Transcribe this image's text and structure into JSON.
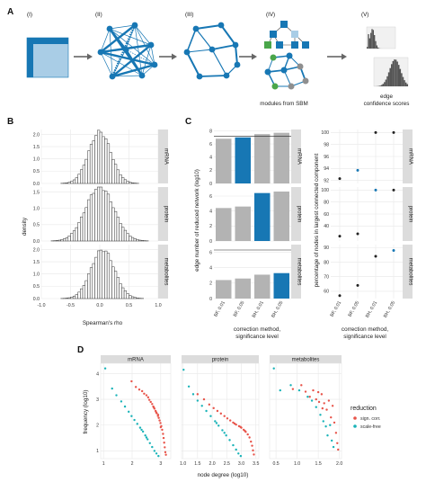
{
  "panels": {
    "A": {
      "letter": "A",
      "steps": [
        "(I)",
        "(II)",
        "(III)",
        "(IV)",
        "(V)"
      ],
      "caption_iv": "modules from SBM",
      "caption_v": [
        "edge",
        "confidence scores"
      ],
      "colors": {
        "blue": "#1777b4",
        "grey": "#8f8f8f",
        "green": "#4aa64a",
        "light": "#a9cde6"
      }
    },
    "B": {
      "letter": "B",
      "xlabel": "Spearman's rho",
      "ylabel": "density",
      "facets": [
        "mRNA",
        "protein",
        "metabolites"
      ],
      "x_ticks": [
        "-1.0",
        "-0.5",
        "0.0",
        "0.5",
        "1.0"
      ],
      "y_ticks": [
        [
          "0.0",
          "0.5",
          "1.0",
          "1.5",
          "2.0"
        ],
        [
          "0.0",
          "0.5",
          "1.0",
          "1.5"
        ],
        [
          "0.0",
          "0.5",
          "1.0",
          "1.5",
          "2.0"
        ]
      ]
    },
    "C": {
      "letter": "C",
      "left_ylabel": "edge number of reduced network (log10)",
      "right_ylabel": "percentage of nodes in largest connected component",
      "xlabel": [
        "correction method,",
        "significance level"
      ],
      "categories": [
        "BF, 0.01",
        "BF, 0.05",
        "BH, 0.01",
        "BH, 0.05"
      ],
      "facets": [
        "mRNA",
        "protein",
        "metabolites"
      ],
      "left_y_ticks": [
        [
          "0",
          "2",
          "4",
          "6",
          "8"
        ],
        [
          "0",
          "2",
          "4",
          "6"
        ],
        [
          "0",
          "2",
          "4",
          "6"
        ]
      ],
      "right_y_ticks": [
        [
          "92",
          "94",
          "96",
          "98",
          "100"
        ],
        [
          "40",
          "60",
          "80",
          "100"
        ],
        [
          "60",
          "70",
          "80",
          "90"
        ]
      ]
    },
    "D": {
      "letter": "D",
      "xlabel": "node degree (log10)",
      "ylabel": "frequency (log10)",
      "facets": [
        "mRNA",
        "protein",
        "metabolites"
      ],
      "x_ticks": [
        [
          "1",
          "2",
          "3"
        ],
        [
          "1.0",
          "1.5",
          "2.0",
          "2.5",
          "3.0",
          "3.5"
        ],
        [
          "0.5",
          "1.0",
          "1.5",
          "2.0"
        ]
      ],
      "y_ticks": [
        "1",
        "2",
        "3",
        "4"
      ],
      "legend_title": "reduction",
      "legend_items": [
        "sign. corr.",
        "scale-free"
      ]
    }
  },
  "colors": {
    "bar_grey": "#b3b3b3",
    "bar_blue": "#1777b4",
    "hist_fill": "#ffffff",
    "hist_stroke": "#333333",
    "sign_corr": "#e8544a",
    "scale_free": "#19b3b8"
  },
  "chart_data": [
    {
      "type": "bar",
      "id": "B-histograms",
      "facets": [
        "mRNA",
        "protein",
        "metabolites"
      ],
      "x_range": [
        -1,
        1
      ],
      "ylim": [
        [
          0,
          2.2
        ],
        [
          0,
          1.65
        ],
        [
          0,
          2.2
        ]
      ],
      "distribution": [
        {
          "name": "mRNA",
          "mean": 0.0,
          "sd": 0.19
        },
        {
          "name": "protein",
          "mean": 0.0,
          "sd": 0.24
        },
        {
          "name": "metabolites",
          "mean": 0.05,
          "sd": 0.2
        }
      ]
    },
    {
      "type": "bar",
      "id": "C-edge-number",
      "categories": [
        "BF, 0.01",
        "BF, 0.05",
        "BH, 0.01",
        "BH, 0.05"
      ],
      "series": [
        {
          "name": "mRNA",
          "values": [
            6.8,
            7.0,
            7.5,
            7.7
          ],
          "selected": 1,
          "ylim": [
            0,
            8.2
          ],
          "hline": 7.15
        },
        {
          "name": "protein",
          "values": [
            4.4,
            4.6,
            6.4,
            6.6
          ],
          "selected": 2,
          "ylim": [
            0,
            7.2
          ],
          "hline": null
        },
        {
          "name": "metabolites",
          "values": [
            2.4,
            2.6,
            3.1,
            3.3
          ],
          "selected": 3,
          "ylim": [
            0,
            7.0
          ],
          "hline": 6.3
        }
      ]
    },
    {
      "type": "scatter",
      "id": "C-percentage-lcc",
      "categories": [
        "BF, 0.01",
        "BF, 0.05",
        "BH, 0.01",
        "BH, 0.05"
      ],
      "series": [
        {
          "name": "mRNA",
          "values": [
            92.3,
            93.7,
            100,
            100
          ],
          "selected": 1,
          "ylim": [
            91.5,
            100.5
          ]
        },
        {
          "name": "protein",
          "values": [
            23,
            27,
            100,
            100
          ],
          "selected": 2,
          "ylim": [
            15,
            105
          ]
        },
        {
          "name": "metabolites",
          "values": [
            57,
            64,
            84,
            88
          ],
          "selected": 3,
          "ylim": [
            55,
            92
          ]
        }
      ]
    },
    {
      "type": "scatter",
      "id": "D-degree-distribution",
      "xlabel": "node degree (log10)",
      "ylabel": "frequency (log10)",
      "facets": [
        {
          "name": "mRNA",
          "xlim": [
            0.9,
            3.35
          ],
          "ylim": [
            0.7,
            4.4
          ],
          "sign_corr": [
            [
              1.98,
              3.7
            ],
            [
              2.13,
              3.48
            ],
            [
              2.25,
              3.38
            ],
            [
              2.35,
              3.32
            ],
            [
              2.42,
              3.22
            ],
            [
              2.5,
              3.16
            ],
            [
              2.56,
              3.08
            ],
            [
              2.6,
              2.98
            ],
            [
              2.65,
              2.9
            ],
            [
              2.7,
              2.82
            ],
            [
              2.74,
              2.72
            ],
            [
              2.78,
              2.64
            ],
            [
              2.82,
              2.55
            ],
            [
              2.86,
              2.46
            ],
            [
              2.9,
              2.36
            ],
            [
              2.93,
              2.28
            ],
            [
              2.96,
              2.18
            ],
            [
              2.99,
              2.08
            ],
            [
              3.02,
              1.96
            ],
            [
              3.05,
              1.82
            ],
            [
              3.08,
              1.66
            ],
            [
              3.1,
              1.5
            ],
            [
              3.12,
              1.32
            ],
            [
              3.14,
              1.14
            ],
            [
              3.16,
              0.95
            ],
            [
              3.18,
              0.85
            ],
            [
              3.0,
              1.92
            ],
            [
              2.91,
              2.4
            ],
            [
              2.84,
              2.5
            ],
            [
              2.76,
              2.68
            ]
          ],
          "scale_free": [
            [
              1.06,
              4.2
            ],
            [
              1.3,
              3.42
            ],
            [
              1.45,
              3.16
            ],
            [
              1.62,
              2.92
            ],
            [
              1.75,
              2.72
            ],
            [
              1.88,
              2.52
            ],
            [
              1.98,
              2.35
            ],
            [
              2.08,
              2.2
            ],
            [
              2.18,
              2.05
            ],
            [
              2.28,
              1.9
            ],
            [
              2.38,
              1.75
            ],
            [
              2.46,
              1.6
            ],
            [
              2.54,
              1.45
            ],
            [
              2.62,
              1.3
            ],
            [
              2.7,
              1.15
            ],
            [
              2.78,
              1.0
            ],
            [
              2.85,
              0.9
            ],
            [
              2.92,
              0.8
            ],
            [
              2.33,
              1.82
            ],
            [
              2.5,
              1.52
            ]
          ]
        },
        {
          "name": "protein",
          "xlim": [
            0.95,
            3.6
          ],
          "ylim": [
            0.7,
            4.4
          ],
          "sign_corr": [
            [
              1.5,
              3.2
            ],
            [
              1.72,
              3.0
            ],
            [
              1.9,
              2.8
            ],
            [
              2.05,
              2.66
            ],
            [
              2.18,
              2.55
            ],
            [
              2.3,
              2.45
            ],
            [
              2.42,
              2.35
            ],
            [
              2.52,
              2.26
            ],
            [
              2.62,
              2.18
            ],
            [
              2.72,
              2.1
            ],
            [
              2.82,
              2.02
            ],
            [
              2.92,
              1.96
            ],
            [
              3.0,
              1.9
            ],
            [
              3.08,
              1.82
            ],
            [
              3.15,
              1.74
            ],
            [
              3.22,
              1.64
            ],
            [
              3.28,
              1.52
            ],
            [
              3.33,
              1.36
            ],
            [
              3.37,
              1.2
            ],
            [
              3.4,
              1.02
            ],
            [
              3.43,
              0.86
            ],
            [
              3.12,
              1.78
            ],
            [
              2.97,
              1.93
            ],
            [
              2.77,
              2.06
            ]
          ],
          "scale_free": [
            [
              1.02,
              4.15
            ],
            [
              1.2,
              3.5
            ],
            [
              1.35,
              3.2
            ],
            [
              1.5,
              2.95
            ],
            [
              1.65,
              2.75
            ],
            [
              1.8,
              2.55
            ],
            [
              1.95,
              2.35
            ],
            [
              2.1,
              2.15
            ],
            [
              2.22,
              1.98
            ],
            [
              2.35,
              1.8
            ],
            [
              2.48,
              1.6
            ],
            [
              2.6,
              1.42
            ],
            [
              2.72,
              1.22
            ],
            [
              2.82,
              1.05
            ],
            [
              2.9,
              0.9
            ],
            [
              2.98,
              0.8
            ],
            [
              2.15,
              2.08
            ],
            [
              2.42,
              1.7
            ]
          ]
        },
        {
          "name": "metabolites",
          "xlim": [
            0.35,
            2.05
          ],
          "ylim": [
            0.7,
            4.4
          ],
          "sign_corr": [
            [
              0.9,
              3.4
            ],
            [
              1.1,
              3.55
            ],
            [
              1.2,
              3.3
            ],
            [
              1.3,
              3.1
            ],
            [
              1.38,
              3.35
            ],
            [
              1.45,
              3.0
            ],
            [
              1.52,
              2.9
            ],
            [
              1.58,
              3.2
            ],
            [
              1.64,
              2.85
            ],
            [
              1.7,
              2.6
            ],
            [
              1.75,
              2.95
            ],
            [
              1.8,
              2.3
            ],
            [
              1.84,
              2.75
            ],
            [
              1.88,
              2.1
            ],
            [
              1.92,
              1.7
            ],
            [
              1.95,
              1.3
            ],
            [
              1.97,
              1.05
            ],
            [
              1.6,
              2.65
            ],
            [
              1.5,
              3.28
            ]
          ],
          "scale_free": [
            [
              0.45,
              4.2
            ],
            [
              0.6,
              3.35
            ],
            [
              0.85,
              3.55
            ],
            [
              1.05,
              3.35
            ],
            [
              1.25,
              3.1
            ],
            [
              1.35,
              2.95
            ],
            [
              1.45,
              2.7
            ],
            [
              1.55,
              2.4
            ],
            [
              1.62,
              2.15
            ],
            [
              1.68,
              1.95
            ],
            [
              1.72,
              1.6
            ],
            [
              1.78,
              2.0
            ],
            [
              1.82,
              1.4
            ],
            [
              1.86,
              1.15
            ]
          ]
        }
      ]
    }
  ]
}
